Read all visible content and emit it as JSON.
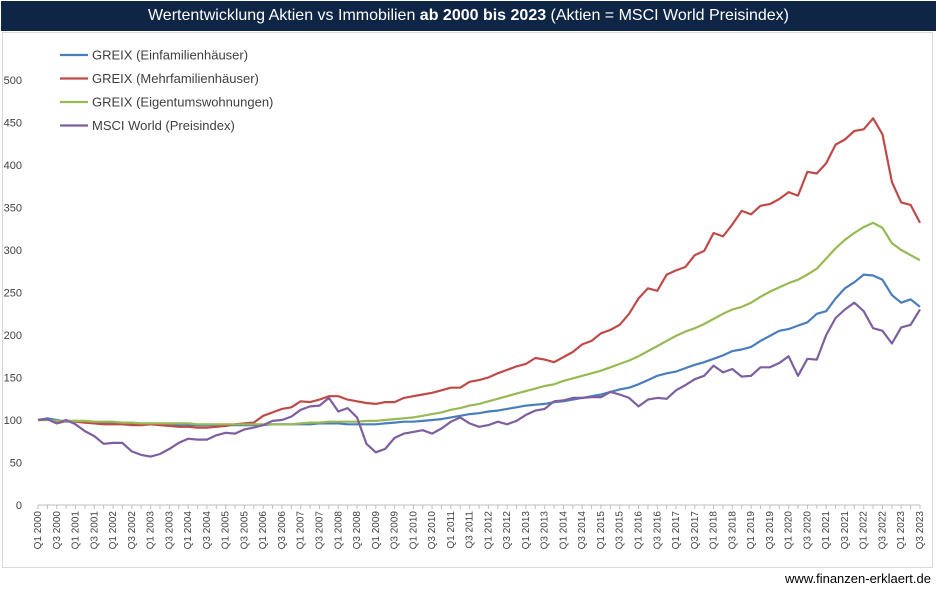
{
  "title": {
    "part1": "Wertentwicklung Aktien vs Immobilien ",
    "bold": "ab 2000 bis 2023",
    "part2": " (Aktien = MSCI World Preisindex)"
  },
  "source": "www.finanzen-erklaert.de",
  "chart_data": {
    "type": "line",
    "ylim": [
      0,
      500
    ],
    "yticks": [
      0,
      50,
      100,
      150,
      200,
      250,
      300,
      350,
      400,
      450,
      500
    ],
    "grid": false,
    "legend_position": "top-left",
    "x": [
      "Q1 2000",
      "Q2 2000",
      "Q3 2000",
      "Q4 2000",
      "Q1 2001",
      "Q2 2001",
      "Q3 2001",
      "Q4 2001",
      "Q1 2002",
      "Q2 2002",
      "Q3 2002",
      "Q4 2002",
      "Q1 2003",
      "Q2 2003",
      "Q3 2003",
      "Q4 2003",
      "Q1 2004",
      "Q2 2004",
      "Q3 2004",
      "Q4 2004",
      "Q1 2005",
      "Q2 2005",
      "Q3 2005",
      "Q4 2005",
      "Q1 2006",
      "Q2 2006",
      "Q3 2006",
      "Q4 2006",
      "Q1 2007",
      "Q2 2007",
      "Q3 2007",
      "Q4 2007",
      "Q1 2008",
      "Q2 2008",
      "Q3 2008",
      "Q4 2008",
      "Q1 2009",
      "Q2 2009",
      "Q3 2009",
      "Q4 2009",
      "Q1 2010",
      "Q2 2010",
      "Q3 2010",
      "Q4 2010",
      "Q1 2011",
      "Q2 2011",
      "Q3 2011",
      "Q4 2011",
      "Q1 2012",
      "Q2 2012",
      "Q3 2012",
      "Q4 2012",
      "Q1 2013",
      "Q2 2013",
      "Q3 2013",
      "Q4 2013",
      "Q1 2014",
      "Q2 2014",
      "Q3 2014",
      "Q4 2014",
      "Q1 2015",
      "Q2 2015",
      "Q3 2015",
      "Q4 2015",
      "Q1 2016",
      "Q2 2016",
      "Q3 2016",
      "Q4 2016",
      "Q1 2017",
      "Q2 2017",
      "Q3 2017",
      "Q4 2017",
      "Q1 2018",
      "Q2 2018",
      "Q3 2018",
      "Q4 2018",
      "Q1 2019",
      "Q2 2019",
      "Q3 2019",
      "Q4 2019",
      "Q1 2020",
      "Q2 2020",
      "Q3 2020",
      "Q4 2020",
      "Q1 2021",
      "Q2 2021",
      "Q3 2021",
      "Q4 2021",
      "Q1 2022",
      "Q2 2022",
      "Q3 2022",
      "Q4 2022",
      "Q1 2023",
      "Q2 2023",
      "Q3 2023"
    ],
    "xtick_labels": [
      "Q1 2000",
      "Q3 2000",
      "Q1 2001",
      "Q3 2001",
      "Q1 2002",
      "Q3 2002",
      "Q1 2003",
      "Q3 2003",
      "Q1 2004",
      "Q3 2004",
      "Q1 2005",
      "Q3 2005",
      "Q1 2006",
      "Q3 2006",
      "Q1 2007",
      "Q3 2007",
      "Q1 2008",
      "Q3 2008",
      "Q1 2009",
      "Q3 2009",
      "Q1 2010",
      "Q3 2010",
      "Q1 2011",
      "Q3 2011",
      "Q1 2012",
      "Q3 2012",
      "Q1 2013",
      "Q3 2013",
      "Q1 2014",
      "Q3 2014",
      "Q1 2015",
      "Q3 2015",
      "Q1 2016",
      "Q3 2016",
      "Q1 2017",
      "Q3 2017",
      "Q1 2018",
      "Q3 2018",
      "Q1 2019",
      "Q3 2019",
      "Q1 2020",
      "Q3 2020",
      "Q1 2021",
      "Q3 2021",
      "Q1 2022",
      "Q3 2022",
      "Q1 2023",
      "Q3 2023"
    ],
    "series": [
      {
        "name": "GREIX (Einfamilienhäuser)",
        "color": "#4a7ebb",
        "values": [
          100,
          102,
          100,
          98,
          99,
          98,
          97,
          97,
          97,
          96,
          96,
          95,
          95,
          95,
          94,
          94,
          94,
          94,
          94,
          94,
          94,
          94,
          94,
          94,
          94,
          95,
          95,
          95,
          95,
          95,
          96,
          96,
          96,
          95,
          95,
          95,
          95,
          96,
          97,
          98,
          98,
          99,
          100,
          101,
          103,
          105,
          107,
          108,
          110,
          111,
          113,
          115,
          117,
          118,
          119,
          121,
          122,
          124,
          126,
          128,
          130,
          133,
          136,
          138,
          142,
          147,
          152,
          155,
          157,
          161,
          165,
          168,
          172,
          176,
          181,
          183,
          186,
          193,
          199,
          205,
          207,
          211,
          215,
          225,
          228,
          243,
          255,
          262,
          271,
          270,
          265,
          247,
          238,
          242,
          233
        ]
      },
      {
        "name": "GREIX (Mehrfamilienhäuser)",
        "color": "#be4b48",
        "values": [
          100,
          101,
          96,
          99,
          98,
          97,
          96,
          95,
          95,
          95,
          94,
          94,
          95,
          94,
          93,
          92,
          92,
          91,
          91,
          92,
          93,
          95,
          96,
          97,
          105,
          109,
          113,
          115,
          122,
          121,
          124,
          128,
          128,
          124,
          122,
          120,
          119,
          121,
          121,
          126,
          128,
          130,
          132,
          135,
          138,
          138,
          145,
          147,
          150,
          155,
          159,
          163,
          166,
          173,
          171,
          168,
          174,
          180,
          189,
          193,
          202,
          206,
          212,
          225,
          243,
          255,
          252,
          271,
          276,
          280,
          294,
          299,
          320,
          316,
          330,
          346,
          342,
          352,
          354,
          360,
          368,
          364,
          392,
          390,
          402,
          424,
          430,
          440,
          442,
          455,
          436,
          380,
          356,
          353,
          332
        ]
      },
      {
        "name": "GREIX (Eigentumswohnungen)",
        "color": "#98b954",
        "values": [
          100,
          100,
          99,
          99,
          99,
          99,
          98,
          98,
          98,
          97,
          97,
          96,
          96,
          96,
          96,
          96,
          96,
          95,
          95,
          95,
          95,
          95,
          95,
          95,
          95,
          95,
          95,
          95,
          96,
          97,
          97,
          98,
          98,
          98,
          98,
          99,
          99,
          100,
          101,
          102,
          103,
          105,
          107,
          109,
          112,
          114,
          117,
          119,
          122,
          125,
          128,
          131,
          134,
          137,
          140,
          142,
          146,
          149,
          152,
          155,
          158,
          162,
          166,
          170,
          175,
          181,
          187,
          193,
          199,
          204,
          208,
          213,
          219,
          225,
          230,
          233,
          238,
          245,
          251,
          256,
          261,
          265,
          271,
          278,
          290,
          302,
          312,
          320,
          327,
          332,
          326,
          308,
          300,
          294,
          288
        ]
      },
      {
        "name": "MSCI World (Preisindex)",
        "color": "#7d5fa0",
        "values": [
          100,
          101,
          96,
          100,
          95,
          87,
          81,
          72,
          73,
          73,
          63,
          59,
          57,
          60,
          66,
          73,
          78,
          77,
          77,
          82,
          85,
          84,
          89,
          91,
          94,
          99,
          100,
          104,
          112,
          116,
          117,
          126,
          110,
          114,
          103,
          72,
          62,
          66,
          79,
          84,
          86,
          88,
          84,
          90,
          98,
          103,
          96,
          92,
          94,
          98,
          95,
          99,
          106,
          111,
          113,
          122,
          123,
          126,
          126,
          127,
          127,
          133,
          130,
          126,
          116,
          124,
          126,
          125,
          135,
          141,
          148,
          152,
          164,
          156,
          160,
          151,
          152,
          162,
          162,
          167,
          175,
          152,
          172,
          171,
          200,
          220,
          230,
          238,
          228,
          208,
          205,
          190,
          209,
          212,
          230
        ]
      }
    ]
  }
}
